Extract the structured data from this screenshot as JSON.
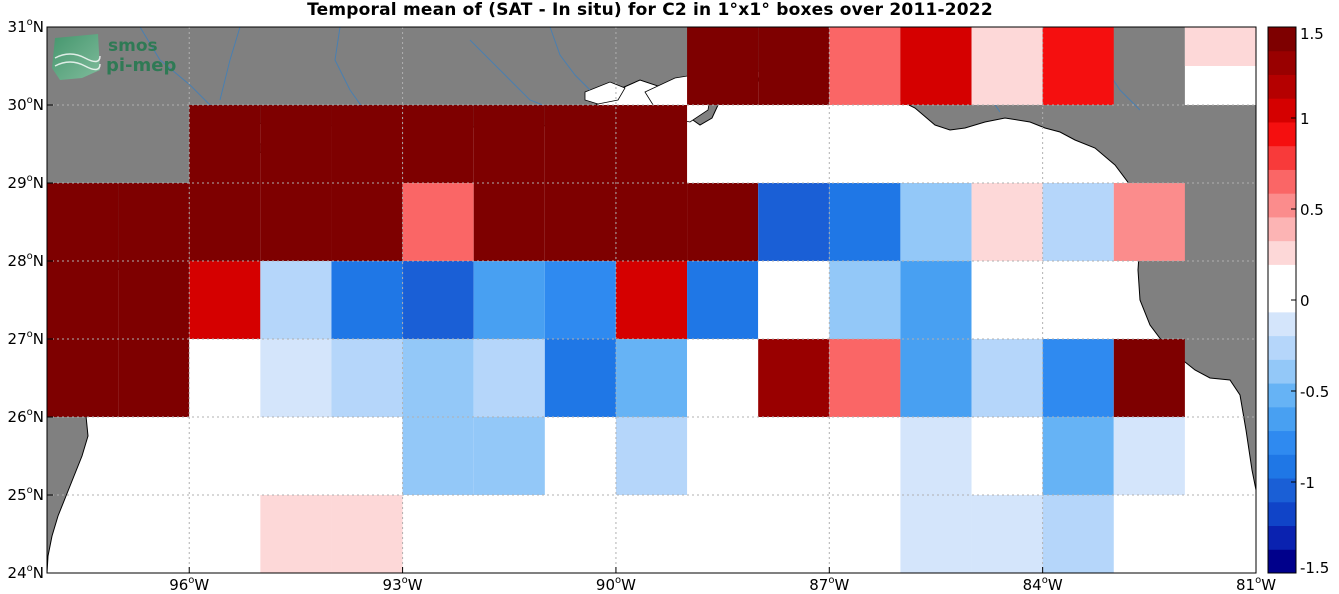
{
  "title": "Temporal mean of (SAT - In situ) for C2 in 1°x1° boxes over 2011-2022",
  "logo": {
    "line1": "smos",
    "line2": "pi-mep"
  },
  "colors": {
    "land": "#808080",
    "ocean": "#ffffff",
    "coast": "#000000",
    "river": "#4a7fb0",
    "grid": "#b0b0b0"
  },
  "axes": {
    "lon_ticks": [
      {
        "value": -96,
        "deg": "96",
        "hemi": "W"
      },
      {
        "value": -93,
        "deg": "93",
        "hemi": "W"
      },
      {
        "value": -90,
        "deg": "90",
        "hemi": "W"
      },
      {
        "value": -87,
        "deg": "87",
        "hemi": "W"
      },
      {
        "value": -84,
        "deg": "84",
        "hemi": "W"
      },
      {
        "value": -81,
        "deg": "81",
        "hemi": "W"
      }
    ],
    "lat_ticks": [
      {
        "value": 24,
        "deg": "24",
        "hemi": "N"
      },
      {
        "value": 25,
        "deg": "25",
        "hemi": "N"
      },
      {
        "value": 26,
        "deg": "26",
        "hemi": "N"
      },
      {
        "value": 27,
        "deg": "27",
        "hemi": "N"
      },
      {
        "value": 28,
        "deg": "28",
        "hemi": "N"
      },
      {
        "value": 29,
        "deg": "29",
        "hemi": "N"
      },
      {
        "value": 30,
        "deg": "30",
        "hemi": "N"
      },
      {
        "value": 31,
        "deg": "31",
        "hemi": "N"
      }
    ],
    "lon_range": [
      -98,
      -81
    ],
    "lat_range": [
      24,
      31
    ]
  },
  "chart_data": {
    "type": "heatmap",
    "title": "Temporal mean of (SAT - In situ) for C2 in 1°x1° boxes over 2011-2022",
    "cell_size_deg": 1,
    "lon_range": [
      -98,
      -81
    ],
    "lat_range": [
      24,
      31
    ],
    "grid": true,
    "colorbar": {
      "range": [
        -1.5,
        1.5
      ],
      "ticks": [
        "-1.5",
        "-1",
        "-0.5",
        "0",
        "0.5",
        "1",
        "1.5"
      ],
      "colors": [
        "#00008b",
        "#0a22b0",
        "#1044c8",
        "#1a5fd6",
        "#1f77e6",
        "#2f8af0",
        "#48a0f2",
        "#66b3f5",
        "#93c8f8",
        "#b5d6fa",
        "#d4e5fb",
        "#ffffff",
        "#ffffff",
        "#fdd8d8",
        "#fcb4b4",
        "#fb8c8c",
        "#fa6666",
        "#f83a3a",
        "#f50f0f",
        "#d50000",
        "#b50000",
        "#990000",
        "#7e0000"
      ]
    },
    "cells": [
      {
        "lon": -97.5,
        "lat": 26.5,
        "value": 1.5
      },
      {
        "lon": -96.5,
        "lat": 26.5,
        "value": 1.5
      },
      {
        "lon": -97.5,
        "lat": 27.5,
        "value": 1.5
      },
      {
        "lon": -96.5,
        "lat": 27.5,
        "value": 1.5
      },
      {
        "lon": -97.5,
        "lat": 28.5,
        "value": 1.5
      },
      {
        "lon": -96.5,
        "lat": 28.5,
        "value": 1.5
      },
      {
        "lon": -95.5,
        "lat": 28.5,
        "value": 1.5
      },
      {
        "lon": -95.5,
        "lat": 29.5,
        "value": 1.5
      },
      {
        "lon": -94.5,
        "lat": 29.5,
        "value": 1.5
      },
      {
        "lon": -93.5,
        "lat": 29.5,
        "value": 1.5
      },
      {
        "lon": -92.5,
        "lat": 29.5,
        "value": 1.5
      },
      {
        "lon": -91.5,
        "lat": 29.5,
        "value": 1.5
      },
      {
        "lon": -90.5,
        "lat": 29.5,
        "value": 1.5
      },
      {
        "lon": -89.5,
        "lat": 29.5,
        "value": 1.5
      },
      {
        "lon": -95.5,
        "lat": 27.5,
        "value": 1.1
      },
      {
        "lon": -94.5,
        "lat": 28.5,
        "value": 1.5
      },
      {
        "lon": -93.5,
        "lat": 28.5,
        "value": 1.45
      },
      {
        "lon": -92.5,
        "lat": 28.5,
        "value": 0.65
      },
      {
        "lon": -91.5,
        "lat": 28.5,
        "value": 1.5
      },
      {
        "lon": -90.5,
        "lat": 28.5,
        "value": 1.5
      },
      {
        "lon": -89.5,
        "lat": 28.5,
        "value": 1.5
      },
      {
        "lon": -88.5,
        "lat": 28.5,
        "value": 1.5
      },
      {
        "lon": -87.5,
        "lat": 28.5,
        "value": -1.05
      },
      {
        "lon": -86.5,
        "lat": 28.5,
        "value": -0.9
      },
      {
        "lon": -85.5,
        "lat": 28.5,
        "value": -0.35
      },
      {
        "lon": -84.5,
        "lat": 28.5,
        "value": 0.3
      },
      {
        "lon": -83.5,
        "lat": 28.5,
        "value": -0.25
      },
      {
        "lon": -82.5,
        "lat": 28.5,
        "value": 0.5
      },
      {
        "lon": -94.5,
        "lat": 27.5,
        "value": -0.25
      },
      {
        "lon": -93.5,
        "lat": 27.5,
        "value": -0.85
      },
      {
        "lon": -92.5,
        "lat": 27.5,
        "value": -1.05
      },
      {
        "lon": -91.5,
        "lat": 27.5,
        "value": -0.6
      },
      {
        "lon": -90.5,
        "lat": 27.5,
        "value": -0.8
      },
      {
        "lon": -89.5,
        "lat": 27.5,
        "value": 1.1
      },
      {
        "lon": -88.5,
        "lat": 27.5,
        "value": -0.85
      },
      {
        "lon": -87.5,
        "lat": 27.5,
        "value": 0.0
      },
      {
        "lon": -86.5,
        "lat": 27.5,
        "value": -0.45
      },
      {
        "lon": -85.5,
        "lat": 27.5,
        "value": -0.6
      },
      {
        "lon": -84.5,
        "lat": 27.5,
        "value": 0.0
      },
      {
        "lon": -83.5,
        "lat": 27.5,
        "value": 0.15
      },
      {
        "lon": -95.5,
        "lat": 26.5,
        "value": 0.0
      },
      {
        "lon": -94.5,
        "lat": 26.5,
        "value": -0.15
      },
      {
        "lon": -93.5,
        "lat": 26.5,
        "value": -0.3
      },
      {
        "lon": -92.5,
        "lat": 26.5,
        "value": -0.4
      },
      {
        "lon": -91.5,
        "lat": 26.5,
        "value": -0.25
      },
      {
        "lon": -90.5,
        "lat": 26.5,
        "value": -0.85
      },
      {
        "lon": -89.5,
        "lat": 26.5,
        "value": -0.55
      },
      {
        "lon": -88.5,
        "lat": 26.5,
        "value": 0.0
      },
      {
        "lon": -87.5,
        "lat": 26.5,
        "value": 1.3
      },
      {
        "lon": -86.5,
        "lat": 26.5,
        "value": 0.65
      },
      {
        "lon": -85.5,
        "lat": 26.5,
        "value": -0.6
      },
      {
        "lon": -84.5,
        "lat": 26.5,
        "value": -0.3
      },
      {
        "lon": -83.5,
        "lat": 26.5,
        "value": -0.75
      },
      {
        "lon": -82.5,
        "lat": 26.5,
        "value": 1.5
      },
      {
        "lon": -92.5,
        "lat": 25.5,
        "value": -0.4
      },
      {
        "lon": -91.5,
        "lat": 25.5,
        "value": -0.4
      },
      {
        "lon": -89.5,
        "lat": 25.5,
        "value": -0.25
      },
      {
        "lon": -85.5,
        "lat": 25.5,
        "value": -0.15
      },
      {
        "lon": -83.5,
        "lat": 25.5,
        "value": -0.55
      },
      {
        "lon": -82.5,
        "lat": 25.5,
        "value": -0.15
      },
      {
        "lon": -94.5,
        "lat": 24.5,
        "value": 0.3
      },
      {
        "lon": -93.5,
        "lat": 24.5,
        "value": 0.3
      },
      {
        "lon": -87.5,
        "lat": 24.5,
        "value": 0.15
      },
      {
        "lon": -86.5,
        "lat": 24.5,
        "value": 0.15
      },
      {
        "lon": -85.5,
        "lat": 24.5,
        "value": -0.15
      },
      {
        "lon": -84.5,
        "lat": 24.5,
        "value": -0.15
      },
      {
        "lon": -83.5,
        "lat": 24.5,
        "value": -0.3
      },
      {
        "lon": -88.5,
        "lat": 30.5,
        "value": 1.5
      },
      {
        "lon": -87.5,
        "lat": 30.5,
        "value": 1.5
      },
      {
        "lon": -86.5,
        "lat": 30.5,
        "value": 0.6
      },
      {
        "lon": -85.5,
        "lat": 30.5,
        "value": 1.1
      },
      {
        "lon": -84.5,
        "lat": 30.5,
        "value": 0.3
      },
      {
        "lon": -83.5,
        "lat": 30.5,
        "value": 0.9
      },
      {
        "lon": -81.5,
        "lat": 30.5,
        "value": 0.15
      },
      {
        "lon": -81.5,
        "lat": 31.0,
        "value": 0.3
      }
    ]
  }
}
